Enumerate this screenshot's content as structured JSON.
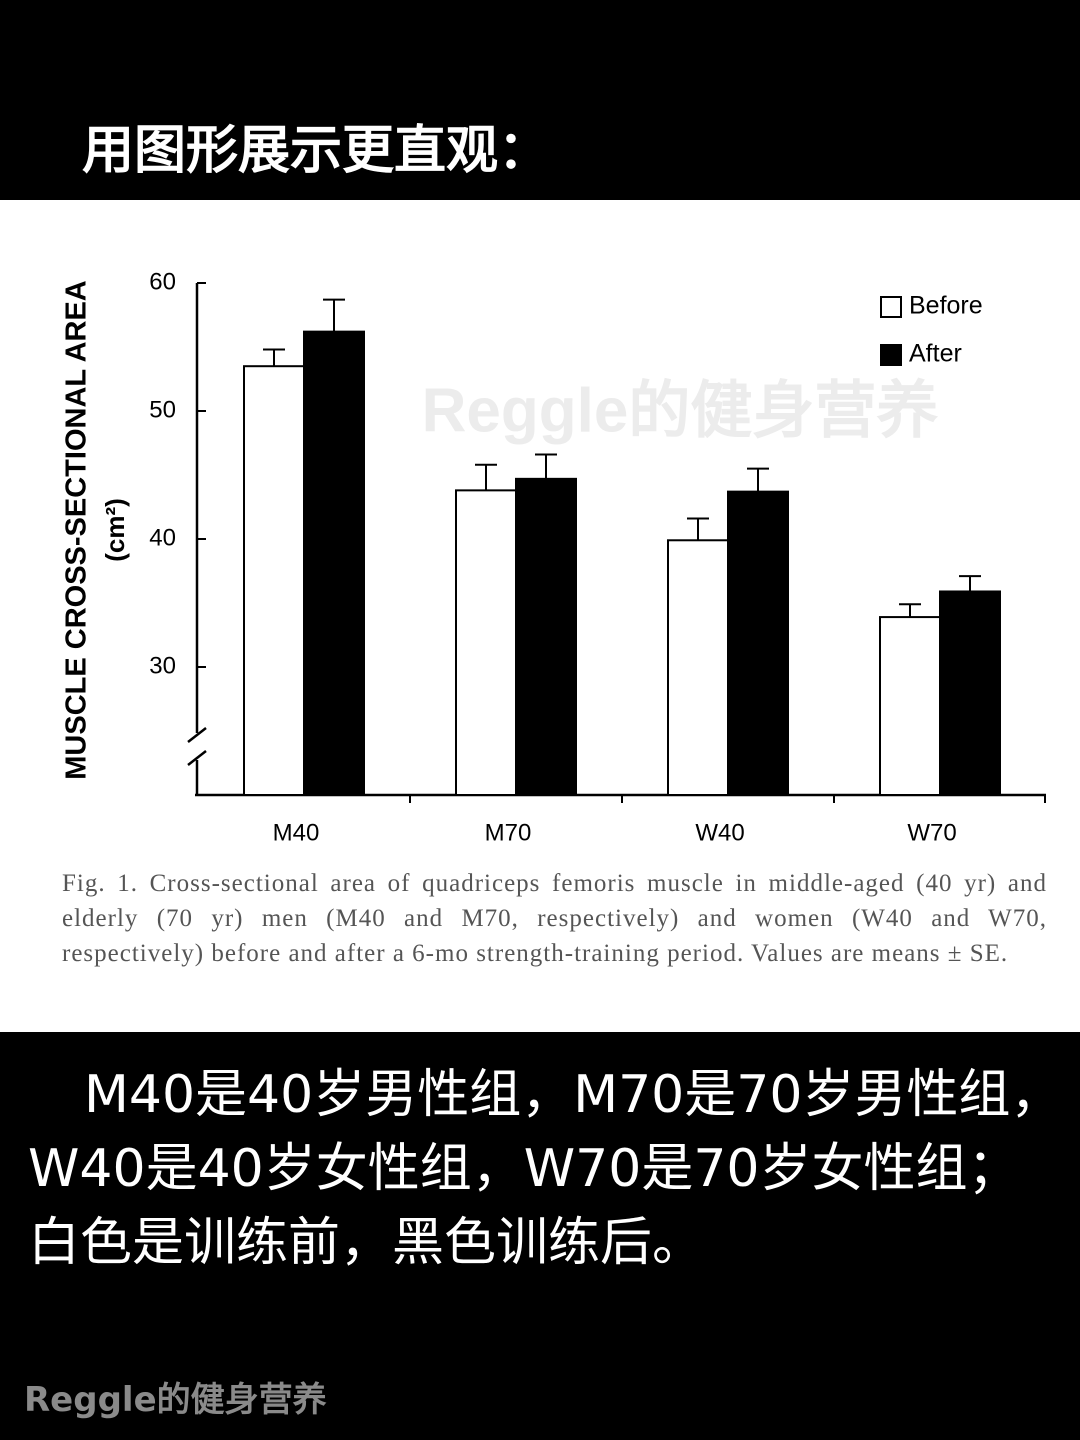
{
  "header": {
    "title": "用图形展示更直观："
  },
  "chart_data": {
    "type": "bar",
    "ylabel": "MUSCLE CROSS-SECTIONAL AREA",
    "yunit": "(cm²)",
    "categories": [
      "M40",
      "M70",
      "W40",
      "W70"
    ],
    "series": [
      {
        "name": "Before",
        "color": "#ffffff",
        "values": [
          53.5,
          43.8,
          39.9,
          33.9
        ],
        "errors": [
          1.3,
          2.0,
          1.7,
          1.0
        ]
      },
      {
        "name": "After",
        "color": "#000000",
        "values": [
          56.2,
          44.7,
          43.7,
          35.9
        ],
        "errors": [
          2.5,
          1.9,
          1.8,
          1.2
        ]
      }
    ],
    "ylim": [
      20,
      60
    ],
    "yticks": [
      30,
      40,
      50,
      60
    ],
    "axis_break": true,
    "legend": "upper right",
    "caption": "Fig. 1.  Cross-sectional area of quadriceps femoris muscle in middle-aged (40 yr) and elderly (70 yr) men (M40 and M70, respectively) and women (W40 and W70, respectively) before and after a 6-mo strength-training period. Values are means ± SE."
  },
  "watermarks": [
    "Reggle的健身营养",
    "Reggle的健身营养"
  ],
  "body": {
    "text": "M40是40岁男性组，M70是70岁男性组，W40是40岁女性组，W70是70岁女性组；白色是训练前，黑色训练后。"
  }
}
